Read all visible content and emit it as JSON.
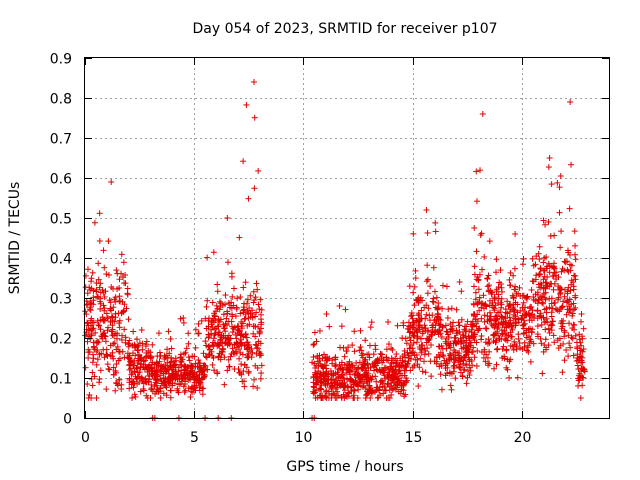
{
  "chart_data": {
    "type": "scatter",
    "title": "Day 054 of 2023, SRMTID for receiver p107",
    "xlabel": "GPS time / hours",
    "ylabel": "SRMTID / TECUs",
    "xlim": [
      0,
      24
    ],
    "ylim": [
      0,
      0.9
    ],
    "x_ticks": [
      0,
      5,
      10,
      15,
      20
    ],
    "x_tick_labels": [
      "0",
      "5",
      "10",
      "15",
      "20"
    ],
    "y_ticks": [
      0,
      0.1,
      0.2,
      0.3,
      0.4,
      0.5,
      0.6,
      0.7,
      0.8,
      0.9
    ],
    "y_tick_labels": [
      "0",
      "0.1",
      "0.2",
      "0.3",
      "0.4",
      "0.5",
      "0.6",
      "0.7",
      "0.8",
      "0.9"
    ],
    "grid": true,
    "marker": "+",
    "color": "#e00000",
    "series": [
      {
        "name": "p107",
        "segments": [
          {
            "x_start": 0.0,
            "x_end": 2.0,
            "base": 0.22,
            "spread": 0.18,
            "peak": 0.59
          },
          {
            "x_start": 2.0,
            "x_end": 3.0,
            "base": 0.12,
            "spread": 0.07,
            "peak": 0.22
          },
          {
            "x_start": 3.0,
            "x_end": 5.5,
            "base": 0.11,
            "spread": 0.06,
            "peak": 0.25
          },
          {
            "x_start": 5.5,
            "x_end": 7.2,
            "base": 0.2,
            "spread": 0.12,
            "peak": 0.5
          },
          {
            "x_start": 7.2,
            "x_end": 8.1,
            "base": 0.2,
            "spread": 0.15,
            "peak": 0.84
          },
          {
            "x_start": 10.4,
            "x_end": 12.5,
            "base": 0.1,
            "spread": 0.07,
            "peak": 0.28
          },
          {
            "x_start": 12.5,
            "x_end": 14.8,
            "base": 0.11,
            "spread": 0.07,
            "peak": 0.24
          },
          {
            "x_start": 14.8,
            "x_end": 16.2,
            "base": 0.22,
            "spread": 0.13,
            "peak": 0.52
          },
          {
            "x_start": 16.2,
            "x_end": 17.8,
            "base": 0.17,
            "spread": 0.1,
            "peak": 0.34
          },
          {
            "x_start": 17.8,
            "x_end": 18.5,
            "base": 0.25,
            "spread": 0.15,
            "peak": 0.76
          },
          {
            "x_start": 18.5,
            "x_end": 20.5,
            "base": 0.24,
            "spread": 0.12,
            "peak": 0.46
          },
          {
            "x_start": 20.5,
            "x_end": 21.8,
            "base": 0.3,
            "spread": 0.15,
            "peak": 0.65
          },
          {
            "x_start": 21.8,
            "x_end": 22.5,
            "base": 0.3,
            "spread": 0.18,
            "peak": 0.79
          },
          {
            "x_start": 22.5,
            "x_end": 22.9,
            "base": 0.14,
            "spread": 0.08,
            "peak": 0.26
          }
        ],
        "zero_points_x": [
          3.1,
          3.2,
          4.3,
          5.5,
          6.1,
          6.7,
          10.4,
          10.5
        ]
      }
    ]
  }
}
